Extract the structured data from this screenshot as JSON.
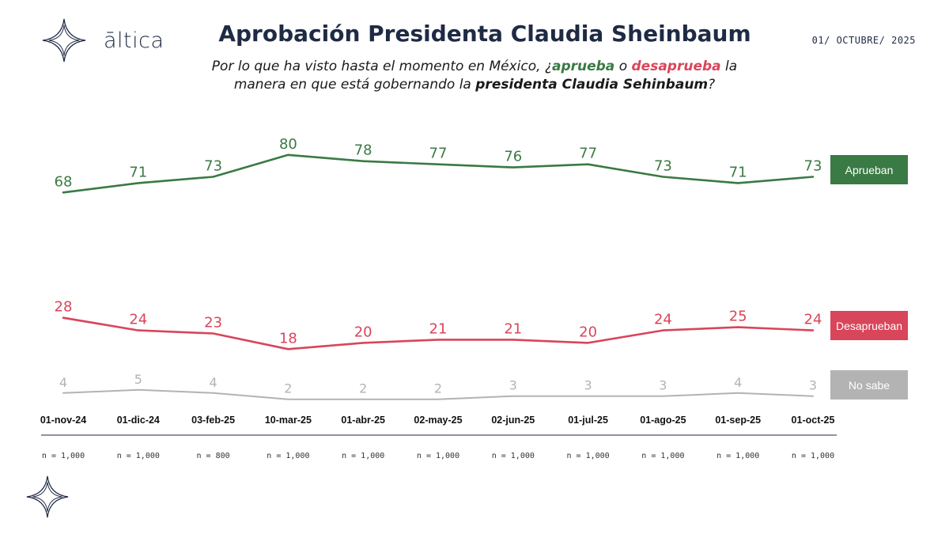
{
  "brand": {
    "name": "āltica"
  },
  "header": {
    "title": "Aprobación Presidenta Claudia Sheinbaum",
    "date": "01/ OCTUBRE/ 2025"
  },
  "question": {
    "part1": "Por lo que ha visto hasta el momento en México, ¿",
    "aprueba": "aprueba",
    "part2": " o ",
    "desaprueba": "desaprueba",
    "part3": " la manera en que está gobernando la ",
    "presidenta": "presidenta Claudia Sehinbaum",
    "part4": "?"
  },
  "colors": {
    "aprueban": "#3a7a44",
    "desaprueban": "#d9455a",
    "nosabe": "#b3b3b3",
    "axis": "#1f2a44"
  },
  "chart_data": {
    "type": "line",
    "categories": [
      "01-nov-24",
      "01-dic-24",
      "03-feb-25",
      "10-mar-25",
      "01-abr-25",
      "02-may-25",
      "02-jun-25",
      "01-jul-25",
      "01-ago-25",
      "01-sep-25",
      "01-oct-25"
    ],
    "sample_sizes": [
      "n = 1,000",
      "n = 1,000",
      "n = 800",
      "n = 1,000",
      "n = 1,000",
      "n = 1,000",
      "n = 1,000",
      "n = 1,000",
      "n = 1,000",
      "n = 1,000",
      "n = 1,000"
    ],
    "series": [
      {
        "name": "Aprueban",
        "color": "#3a7a44",
        "values": [
          68,
          71,
          73,
          80,
          78,
          77,
          76,
          77,
          73,
          71,
          73
        ]
      },
      {
        "name": "Desaprueban",
        "color": "#d9455a",
        "values": [
          28,
          24,
          23,
          18,
          20,
          21,
          21,
          20,
          24,
          25,
          24
        ]
      },
      {
        "name": "No sabe",
        "color": "#b3b3b3",
        "values": [
          4,
          5,
          4,
          2,
          2,
          2,
          3,
          3,
          3,
          4,
          3
        ]
      }
    ],
    "ylim": [
      0,
      100
    ],
    "legend_position": "right"
  }
}
